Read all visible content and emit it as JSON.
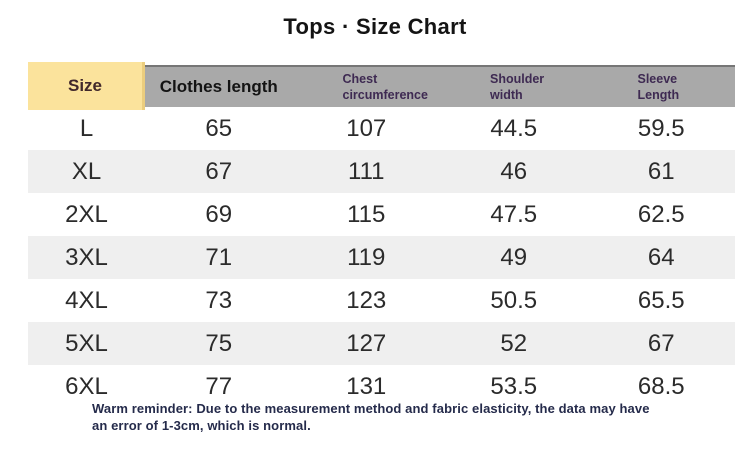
{
  "page": {
    "title": "Tops · Size Chart"
  },
  "table": {
    "headers": {
      "size": "Size",
      "clothes_length": "Clothes length",
      "chest": "Chest circumference",
      "shoulder": "Shoulder width",
      "sleeve": "Sleeve Length"
    },
    "rows": [
      {
        "size": "L",
        "clothes_length": "65",
        "chest": "107",
        "shoulder": "44.5",
        "sleeve": "59.5"
      },
      {
        "size": "XL",
        "clothes_length": "67",
        "chest": "111",
        "shoulder": "46",
        "sleeve": "61"
      },
      {
        "size": "2XL",
        "clothes_length": "69",
        "chest": "115",
        "shoulder": "47.5",
        "sleeve": "62.5"
      },
      {
        "size": "3XL",
        "clothes_length": "71",
        "chest": "119",
        "shoulder": "49",
        "sleeve": "64"
      },
      {
        "size": "4XL",
        "clothes_length": "73",
        "chest": "123",
        "shoulder": "50.5",
        "sleeve": "65.5"
      },
      {
        "size": "5XL",
        "clothes_length": "75",
        "chest": "127",
        "shoulder": "52",
        "sleeve": "67"
      },
      {
        "size": "6XL",
        "clothes_length": "77",
        "chest": "131",
        "shoulder": "53.5",
        "sleeve": "68.5"
      }
    ]
  },
  "reminder": {
    "lines": [
      "Warm reminder: Due to the measurement method and fabric elasticity, the data may have",
      "an error of 1-3cm, which is normal."
    ]
  },
  "colors": {
    "size_header_bg": "#fbe39c",
    "header_bg": "#a9a9a9",
    "alt_row_bg": "#efefef",
    "header_text_purple": "#3e2a52",
    "reminder_text": "#252b4b"
  }
}
